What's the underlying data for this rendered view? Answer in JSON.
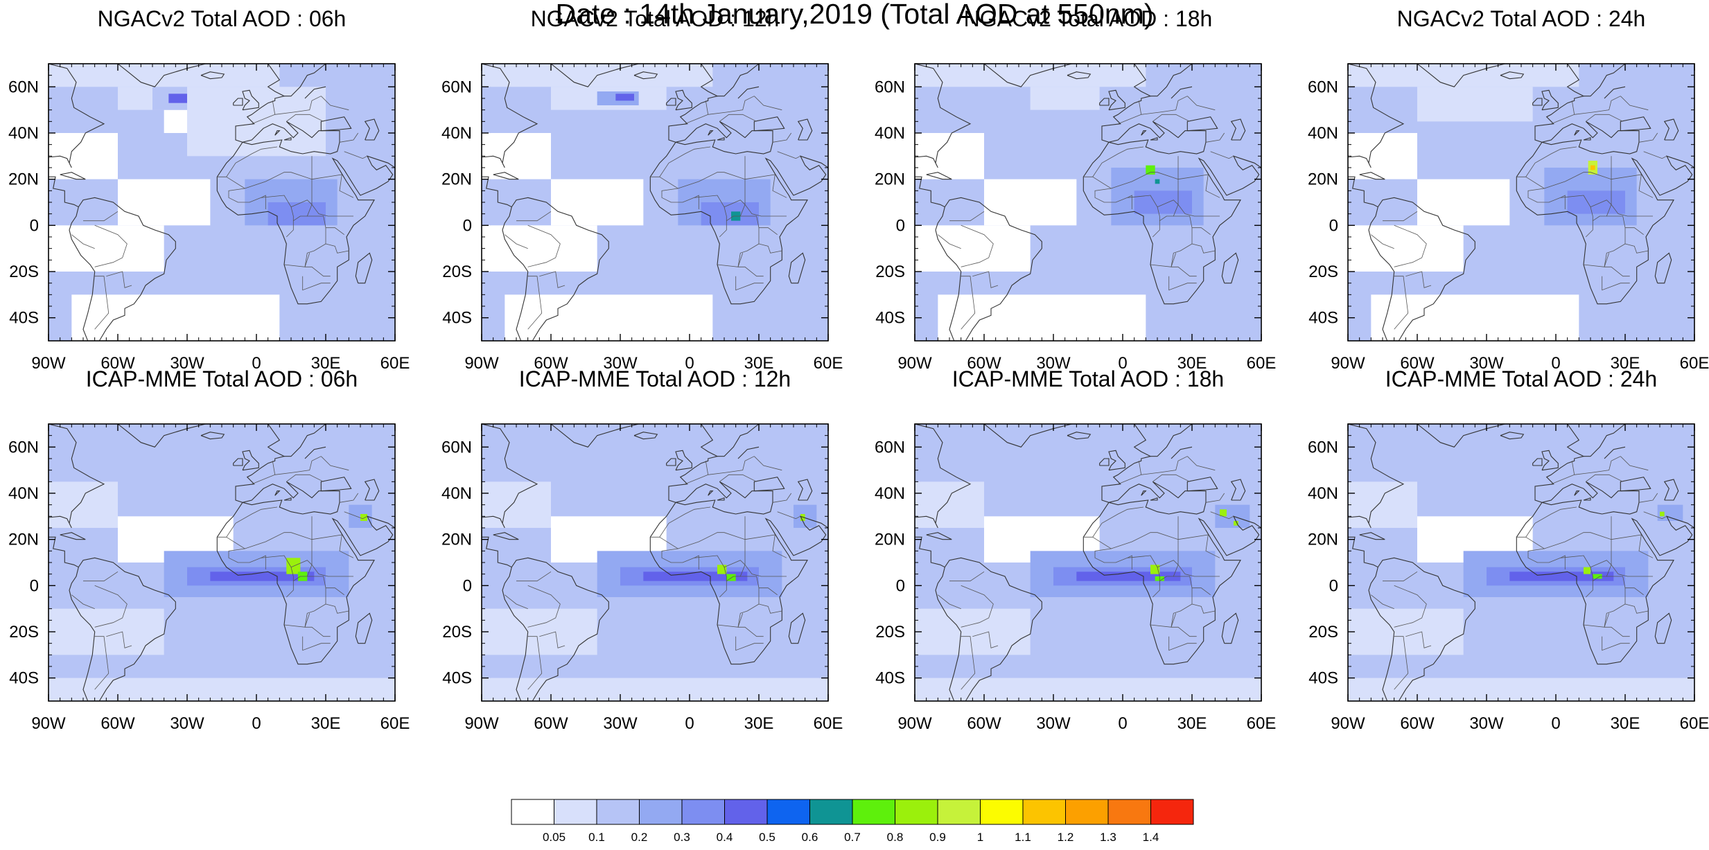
{
  "title": "Date : 14th January,2019 (Total AOD at 550nm)",
  "panels": [
    {
      "title": "NGACv2 Total AOD : 06h",
      "model": "NGACv2",
      "hour": 6
    },
    {
      "title": "NGACv2 Total AOD : 12h",
      "model": "NGACv2",
      "hour": 12
    },
    {
      "title": "NGACv2 Total AOD : 18h",
      "model": "NGACv2",
      "hour": 18
    },
    {
      "title": "NGACv2 Total AOD : 24h",
      "model": "NGACv2",
      "hour": 24
    },
    {
      "title": "ICAP-MME Total AOD : 06h",
      "model": "ICAP-MME",
      "hour": 6
    },
    {
      "title": "ICAP-MME Total AOD : 12h",
      "model": "ICAP-MME",
      "hour": 12
    },
    {
      "title": "ICAP-MME Total AOD : 18h",
      "model": "ICAP-MME",
      "hour": 18
    },
    {
      "title": "ICAP-MME Total AOD : 24h",
      "model": "ICAP-MME",
      "hour": 24
    }
  ],
  "axes": {
    "lon_labels": [
      "90W",
      "60W",
      "30W",
      "0",
      "30E",
      "60E"
    ],
    "lat_labels": [
      "60N",
      "40N",
      "20N",
      "0",
      "20S",
      "40S"
    ],
    "lon_range": [
      -90,
      60
    ],
    "lat_range": [
      -50,
      70
    ]
  },
  "colorbar": {
    "colors": [
      "#ffffff",
      "#d8e0fb",
      "#b6c4f6",
      "#93a9f2",
      "#7d8ef1",
      "#6262ea",
      "#0e64f0",
      "#0f9494",
      "#5ef00c",
      "#9bf00c",
      "#c6f23a",
      "#fcfc00",
      "#fcc400",
      "#fca000",
      "#f87810",
      "#f5260d"
    ],
    "labels": [
      "0.05",
      "0.1",
      "0.2",
      "0.3",
      "0.4",
      "0.5",
      "0.6",
      "0.7",
      "0.8",
      "0.9",
      "1",
      "1.1",
      "1.2",
      "1.3",
      "1.4"
    ]
  }
}
